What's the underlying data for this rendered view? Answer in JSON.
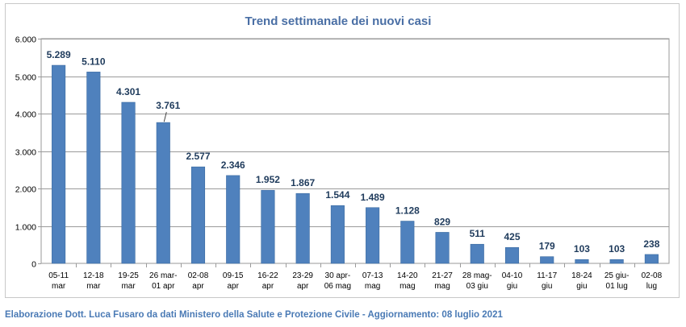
{
  "chart_data": {
    "type": "bar",
    "title": "Trend settimanale dei nuovi casi",
    "xlabel": "",
    "ylabel": "",
    "ylim": [
      0,
      6000
    ],
    "yticks": [
      0,
      1000,
      2000,
      3000,
      4000,
      5000,
      6000
    ],
    "ytick_labels": [
      "0",
      "1.000",
      "2.000",
      "3.000",
      "4.000",
      "5.000",
      "6.000"
    ],
    "grid": true,
    "bar_color": "#4f81bd",
    "title_color": "#4a6fa5",
    "categories": [
      [
        "05-11",
        "mar"
      ],
      [
        "12-18",
        "mar"
      ],
      [
        "19-25",
        "mar"
      ],
      [
        "26 mar-",
        "01 apr"
      ],
      [
        "02-08",
        "apr"
      ],
      [
        "09-15",
        "apr"
      ],
      [
        "16-22",
        "apr"
      ],
      [
        "23-29",
        "apr"
      ],
      [
        "30 apr-",
        "06 mag"
      ],
      [
        "07-13",
        "mag"
      ],
      [
        "14-20",
        "mag"
      ],
      [
        "21-27",
        "mag"
      ],
      [
        "28 mag-",
        "03 giu"
      ],
      [
        "04-10",
        "giu"
      ],
      [
        "11-17",
        "giu"
      ],
      [
        "18-24",
        "giu"
      ],
      [
        "25 giu-",
        "01 lug"
      ],
      [
        "02-08",
        "lug"
      ]
    ],
    "values": [
      5289,
      5110,
      4301,
      3761,
      2577,
      2346,
      1952,
      1867,
      1544,
      1489,
      1128,
      829,
      511,
      425,
      179,
      103,
      103,
      238
    ],
    "data_labels": [
      "5.289",
      "5.110",
      "4.301",
      "3.761",
      "2.577",
      "2.346",
      "1.952",
      "1.867",
      "1.544",
      "1.489",
      "1.128",
      "829",
      "511",
      "425",
      "179",
      "103",
      "103",
      "238"
    ]
  },
  "footer": "Elaborazione Dott. Luca Fusaro da dati Ministero della Salute e Protezione Civile - Aggiornamento: 08 luglio 2021"
}
